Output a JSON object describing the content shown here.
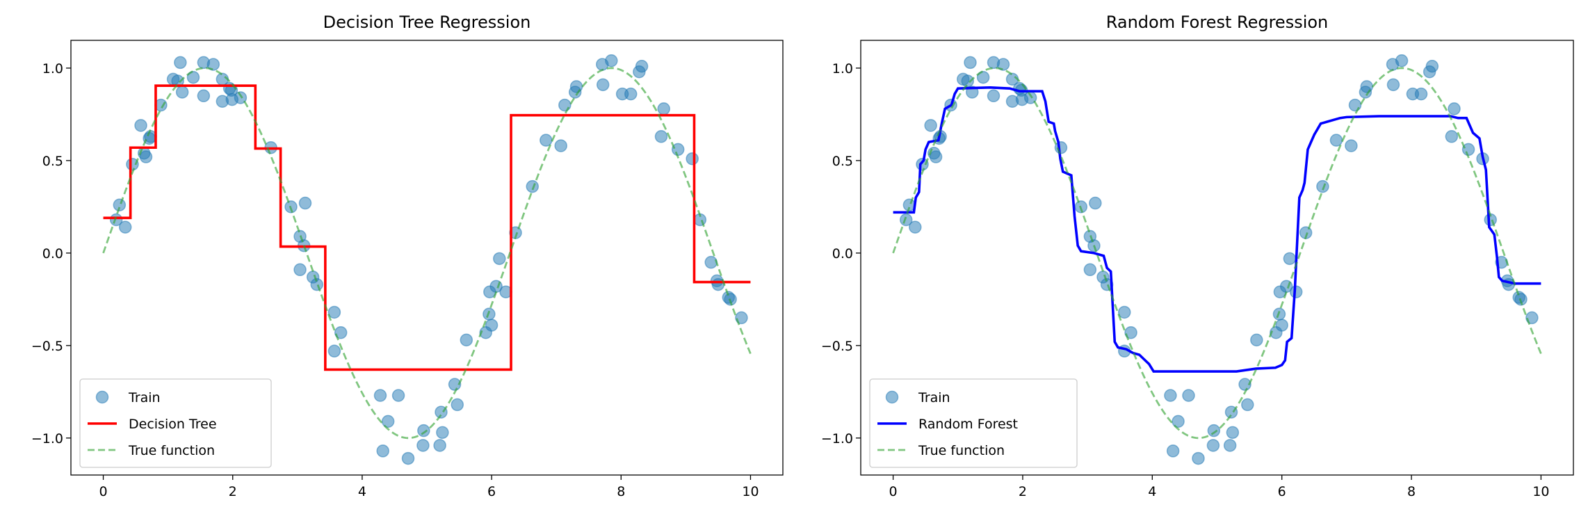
{
  "chart_data": [
    {
      "type": "line",
      "title": "Decision Tree Regression",
      "xlabel": "",
      "ylabel": "",
      "xlim": [
        -0.5,
        10.5
      ],
      "ylim": [
        -1.2,
        1.15
      ],
      "xticks": [
        0,
        2,
        4,
        6,
        8,
        10
      ],
      "xtick_labels": [
        "0",
        "2",
        "4",
        "6",
        "8",
        "10"
      ],
      "yticks": [
        -1.0,
        -0.5,
        0.0,
        0.5,
        1.0
      ],
      "ytick_labels": [
        "−1.0",
        "−0.5",
        "0.0",
        "0.5",
        "1.0"
      ],
      "grid": false,
      "legend": {
        "placement": "lower-left",
        "entries": [
          "Train",
          "Decision Tree",
          "True function"
        ]
      },
      "model_color": "#ff0000",
      "model_points": [
        [
          0,
          0.19
        ],
        [
          0.42,
          0.19
        ],
        [
          0.42,
          0.57
        ],
        [
          0.81,
          0.57
        ],
        [
          0.81,
          0.905
        ],
        [
          2.35,
          0.905
        ],
        [
          2.35,
          0.565
        ],
        [
          2.74,
          0.565
        ],
        [
          2.74,
          0.035
        ],
        [
          3.43,
          0.035
        ],
        [
          3.43,
          -0.63
        ],
        [
          6.3,
          -0.63
        ],
        [
          6.3,
          0.745
        ],
        [
          9.13,
          0.745
        ],
        [
          9.13,
          -0.157
        ],
        [
          10,
          -0.157
        ]
      ]
    },
    {
      "type": "line",
      "title": "Random Forest Regression",
      "xlabel": "",
      "ylabel": "",
      "xlim": [
        -0.5,
        10.5
      ],
      "ylim": [
        -1.2,
        1.15
      ],
      "xticks": [
        0,
        2,
        4,
        6,
        8,
        10
      ],
      "xtick_labels": [
        "0",
        "2",
        "4",
        "6",
        "8",
        "10"
      ],
      "yticks": [
        -1.0,
        -0.5,
        0.0,
        0.5,
        1.0
      ],
      "ytick_labels": [
        "−1.0",
        "−0.5",
        "0.0",
        "0.5",
        "1.0"
      ],
      "grid": false,
      "legend": {
        "placement": "lower-left",
        "entries": [
          "Train",
          "Random Forest",
          "True function"
        ]
      },
      "model_color": "#0000ff",
      "model_points": [
        [
          0,
          0.22
        ],
        [
          0.32,
          0.22
        ],
        [
          0.35,
          0.3
        ],
        [
          0.4,
          0.33
        ],
        [
          0.42,
          0.48
        ],
        [
          0.47,
          0.5
        ],
        [
          0.5,
          0.56
        ],
        [
          0.55,
          0.6
        ],
        [
          0.7,
          0.61
        ],
        [
          0.75,
          0.7
        ],
        [
          0.8,
          0.78
        ],
        [
          0.9,
          0.8
        ],
        [
          0.95,
          0.86
        ],
        [
          1.0,
          0.89
        ],
        [
          1.5,
          0.895
        ],
        [
          1.8,
          0.89
        ],
        [
          1.95,
          0.875
        ],
        [
          2.3,
          0.875
        ],
        [
          2.35,
          0.82
        ],
        [
          2.4,
          0.71
        ],
        [
          2.48,
          0.7
        ],
        [
          2.5,
          0.66
        ],
        [
          2.55,
          0.6
        ],
        [
          2.58,
          0.51
        ],
        [
          2.62,
          0.44
        ],
        [
          2.75,
          0.42
        ],
        [
          2.8,
          0.2
        ],
        [
          2.85,
          0.04
        ],
        [
          2.9,
          0.01
        ],
        [
          3.1,
          0.0
        ],
        [
          3.25,
          -0.015
        ],
        [
          3.3,
          -0.08
        ],
        [
          3.36,
          -0.1
        ],
        [
          3.42,
          -0.48
        ],
        [
          3.47,
          -0.51
        ],
        [
          3.6,
          -0.52
        ],
        [
          3.7,
          -0.54
        ],
        [
          3.8,
          -0.55
        ],
        [
          3.95,
          -0.6
        ],
        [
          4.02,
          -0.64
        ],
        [
          5.3,
          -0.64
        ],
        [
          5.6,
          -0.625
        ],
        [
          5.9,
          -0.62
        ],
        [
          6.0,
          -0.605
        ],
        [
          6.05,
          -0.58
        ],
        [
          6.08,
          -0.48
        ],
        [
          6.15,
          -0.46
        ],
        [
          6.2,
          -0.2
        ],
        [
          6.27,
          0.3
        ],
        [
          6.32,
          0.34
        ],
        [
          6.35,
          0.38
        ],
        [
          6.4,
          0.56
        ],
        [
          6.45,
          0.6
        ],
        [
          6.5,
          0.64
        ],
        [
          6.55,
          0.67
        ],
        [
          6.6,
          0.7
        ],
        [
          6.7,
          0.71
        ],
        [
          6.9,
          0.73
        ],
        [
          7.0,
          0.735
        ],
        [
          7.5,
          0.74
        ],
        [
          8.6,
          0.74
        ],
        [
          8.72,
          0.73
        ],
        [
          8.85,
          0.73
        ],
        [
          8.95,
          0.65
        ],
        [
          9.05,
          0.62
        ],
        [
          9.1,
          0.52
        ],
        [
          9.15,
          0.45
        ],
        [
          9.2,
          0.14
        ],
        [
          9.28,
          0.1
        ],
        [
          9.32,
          -0.02
        ],
        [
          9.35,
          -0.13
        ],
        [
          9.4,
          -0.15
        ],
        [
          9.6,
          -0.165
        ],
        [
          10,
          -0.165
        ]
      ]
    }
  ],
  "shared": {
    "train_color": "#1f77b4",
    "true_color": "#2ca02c",
    "true_function": "sin(x)",
    "true_x_range": [
      0,
      10
    ],
    "train_points": [
      [
        1.19,
        1.03
      ],
      [
        1.55,
        1.03
      ],
      [
        1.7,
        1.02
      ],
      [
        1.08,
        0.94
      ],
      [
        1.15,
        0.93
      ],
      [
        1.39,
        0.95
      ],
      [
        1.22,
        0.87
      ],
      [
        1.55,
        0.85
      ],
      [
        1.84,
        0.94
      ],
      [
        1.95,
        0.89
      ],
      [
        1.98,
        0.88
      ],
      [
        1.84,
        0.82
      ],
      [
        1.99,
        0.83
      ],
      [
        2.12,
        0.84
      ],
      [
        0.89,
        0.8
      ],
      [
        0.58,
        0.69
      ],
      [
        0.73,
        0.63
      ],
      [
        0.71,
        0.62
      ],
      [
        0.63,
        0.54
      ],
      [
        0.66,
        0.52
      ],
      [
        0.45,
        0.48
      ],
      [
        0.25,
        0.26
      ],
      [
        0.2,
        0.18
      ],
      [
        0.34,
        0.14
      ],
      [
        2.59,
        0.57
      ],
      [
        2.9,
        0.25
      ],
      [
        3.12,
        0.27
      ],
      [
        3.04,
        0.09
      ],
      [
        3.1,
        0.04
      ],
      [
        3.04,
        -0.09
      ],
      [
        3.24,
        -0.13
      ],
      [
        3.3,
        -0.17
      ],
      [
        3.57,
        -0.32
      ],
      [
        3.67,
        -0.43
      ],
      [
        3.57,
        -0.53
      ],
      [
        4.28,
        -0.77
      ],
      [
        4.56,
        -0.77
      ],
      [
        4.4,
        -0.91
      ],
      [
        4.32,
        -1.07
      ],
      [
        4.71,
        -1.11
      ],
      [
        4.95,
        -0.96
      ],
      [
        4.94,
        -1.04
      ],
      [
        5.2,
        -1.04
      ],
      [
        5.24,
        -0.97
      ],
      [
        5.22,
        -0.86
      ],
      [
        5.47,
        -0.82
      ],
      [
        5.43,
        -0.71
      ],
      [
        5.61,
        -0.47
      ],
      [
        5.91,
        -0.43
      ],
      [
        5.96,
        -0.33
      ],
      [
        6.0,
        -0.39
      ],
      [
        5.97,
        -0.21
      ],
      [
        6.07,
        -0.18
      ],
      [
        6.22,
        -0.21
      ],
      [
        6.12,
        -0.03
      ],
      [
        6.37,
        0.11
      ],
      [
        6.63,
        0.36
      ],
      [
        6.84,
        0.61
      ],
      [
        7.07,
        0.58
      ],
      [
        7.13,
        0.8
      ],
      [
        7.29,
        0.87
      ],
      [
        7.31,
        0.9
      ],
      [
        7.71,
        1.02
      ],
      [
        7.85,
        1.04
      ],
      [
        7.72,
        0.91
      ],
      [
        8.02,
        0.86
      ],
      [
        8.15,
        0.86
      ],
      [
        8.28,
        0.98
      ],
      [
        8.32,
        1.01
      ],
      [
        8.66,
        0.78
      ],
      [
        8.62,
        0.63
      ],
      [
        8.88,
        0.56
      ],
      [
        9.1,
        0.51
      ],
      [
        9.22,
        0.18
      ],
      [
        9.39,
        -0.05
      ],
      [
        9.48,
        -0.15
      ],
      [
        9.5,
        -0.17
      ],
      [
        9.66,
        -0.24
      ],
      [
        9.69,
        -0.25
      ],
      [
        9.86,
        -0.35
      ]
    ]
  }
}
